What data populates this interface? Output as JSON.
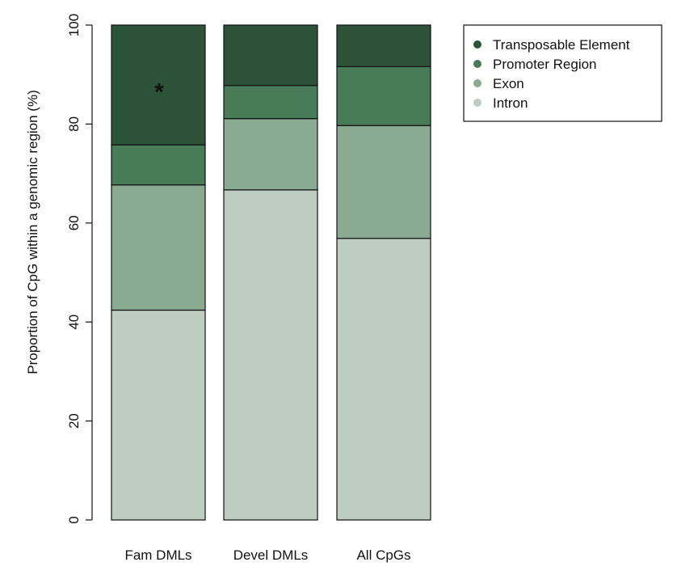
{
  "chart_data": {
    "type": "bar",
    "stacked": true,
    "title": "",
    "xlabel": "",
    "ylabel": "Proportion of CpG within a genomic region (%)",
    "ylim": [
      0,
      100
    ],
    "yticks": [
      0,
      20,
      40,
      60,
      80,
      100
    ],
    "grid": false,
    "legend_position": "top-right",
    "categories": [
      "Fam DMLs",
      "Devel DMLs",
      "All CpGs"
    ],
    "series": [
      {
        "name": "Intron",
        "color": "#bdcdc2",
        "values": [
          42.4,
          66.7,
          56.9
        ]
      },
      {
        "name": "Exon",
        "color": "#8aab91",
        "values": [
          25.3,
          14.4,
          22.8
        ]
      },
      {
        "name": "Promoter Region",
        "color": "#487b57",
        "values": [
          8.1,
          6.7,
          11.9
        ]
      },
      {
        "name": "Transposable Element",
        "color": "#2c5338",
        "values": [
          24.2,
          12.2,
          8.4
        ]
      }
    ],
    "legend_order": [
      "Transposable Element",
      "Promoter Region",
      "Exon",
      "Intron"
    ],
    "annotations": [
      {
        "text": "*",
        "category": "Fam DMLs",
        "y": 87.5
      }
    ]
  }
}
